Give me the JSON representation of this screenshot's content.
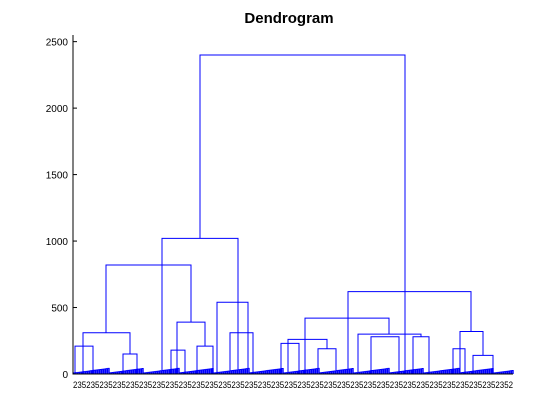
{
  "chart_data": {
    "type": "dendrogram",
    "title": "Dendrogram",
    "xlabel": "",
    "ylabel": "",
    "ylim": [
      0,
      2550
    ],
    "xlim": [
      0,
      440
    ],
    "y_ticks": [
      0,
      500,
      1000,
      1500,
      2000,
      2500
    ],
    "grid": false,
    "link_color": "#0000ff",
    "leaf_label_text": "2352352352352352352352352352352352352352352352352352352352352352352352352352352352352352352352352352",
    "links": [
      {
        "name": "root",
        "left": 127,
        "right": 332,
        "height": 2400
      },
      {
        "name": "left-branch",
        "left": 89,
        "right": 165,
        "height": 1020
      },
      {
        "name": "left-left",
        "left": 33,
        "right": 118,
        "height": 820
      },
      {
        "name": "left-right",
        "left": 144,
        "right": 175,
        "height": 540
      },
      {
        "name": "cluster-a",
        "left": 10,
        "right": 57,
        "height": 310
      },
      {
        "name": "cluster-b",
        "left": 104,
        "right": 132,
        "height": 390
      },
      {
        "name": "cluster-c",
        "left": 157,
        "right": 180,
        "height": 310
      },
      {
        "name": "cluster-a1",
        "left": 2,
        "right": 20,
        "height": 210
      },
      {
        "name": "cluster-a2",
        "left": 50,
        "right": 64,
        "height": 150
      },
      {
        "name": "cluster-b1",
        "left": 98,
        "right": 112,
        "height": 180
      },
      {
        "name": "cluster-b2",
        "left": 124,
        "right": 140,
        "height": 210
      },
      {
        "name": "right-branch",
        "left": 275,
        "right": 398,
        "height": 620
      },
      {
        "name": "right-left",
        "left": 232,
        "right": 316,
        "height": 420
      },
      {
        "name": "right-right",
        "left": 387,
        "right": 410,
        "height": 320
      },
      {
        "name": "cluster-d",
        "left": 215,
        "right": 254,
        "height": 260
      },
      {
        "name": "cluster-e",
        "left": 285,
        "right": 348,
        "height": 300
      },
      {
        "name": "cluster-d1",
        "left": 208,
        "right": 226,
        "height": 230
      },
      {
        "name": "cluster-d2",
        "left": 245,
        "right": 263,
        "height": 190
      },
      {
        "name": "cluster-e1",
        "left": 298,
        "right": 326,
        "height": 280
      },
      {
        "name": "cluster-e2",
        "left": 340,
        "right": 356,
        "height": 280
      },
      {
        "name": "cluster-f1",
        "left": 380,
        "right": 392,
        "height": 190
      },
      {
        "name": "cluster-f2",
        "left": 400,
        "right": 420,
        "height": 140
      }
    ]
  }
}
